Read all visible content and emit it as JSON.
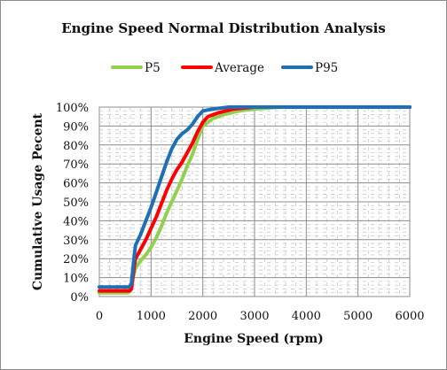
{
  "chart_data": {
    "type": "line",
    "title": "Engine Speed Normal Distribution Analysis",
    "xlabel": "Engine Speed (rpm)",
    "ylabel": "Cumulative Usage Pecent",
    "xlim": [
      0,
      6000
    ],
    "ylim": [
      0,
      100
    ],
    "x_ticks": [
      0,
      1000,
      2000,
      3000,
      4000,
      5000,
      6000
    ],
    "y_ticks": [
      0,
      10,
      20,
      30,
      40,
      50,
      60,
      70,
      80,
      90,
      100
    ],
    "y_tick_labels": [
      "0%",
      "10%",
      "20%",
      "30%",
      "40%",
      "50%",
      "60%",
      "70%",
      "80%",
      "90%",
      "100%"
    ],
    "grid": "major and minor",
    "legend_position": "top",
    "series": [
      {
        "name": "P5",
        "color": "#92d050",
        "points": [
          [
            0,
            2
          ],
          [
            550,
            2
          ],
          [
            600,
            3
          ],
          [
            650,
            10
          ],
          [
            700,
            15
          ],
          [
            800,
            19
          ],
          [
            900,
            22
          ],
          [
            1000,
            26
          ],
          [
            1100,
            31
          ],
          [
            1200,
            37
          ],
          [
            1300,
            44
          ],
          [
            1400,
            50
          ],
          [
            1500,
            56
          ],
          [
            1600,
            62
          ],
          [
            1700,
            69
          ],
          [
            1800,
            75
          ],
          [
            1900,
            83
          ],
          [
            2000,
            90
          ],
          [
            2100,
            92
          ],
          [
            2200,
            94
          ],
          [
            2400,
            96
          ],
          [
            2700,
            98
          ],
          [
            3000,
            99
          ],
          [
            3500,
            100
          ],
          [
            6000,
            100
          ]
        ]
      },
      {
        "name": "Average",
        "color": "#ff0000",
        "points": [
          [
            0,
            3
          ],
          [
            580,
            3
          ],
          [
            620,
            4
          ],
          [
            680,
            17
          ],
          [
            700,
            20
          ],
          [
            800,
            25
          ],
          [
            900,
            30
          ],
          [
            1000,
            36
          ],
          [
            1100,
            42
          ],
          [
            1200,
            49
          ],
          [
            1300,
            56
          ],
          [
            1400,
            62
          ],
          [
            1500,
            67
          ],
          [
            1600,
            71
          ],
          [
            1700,
            76
          ],
          [
            1800,
            81
          ],
          [
            1900,
            87
          ],
          [
            2000,
            92
          ],
          [
            2100,
            95
          ],
          [
            2300,
            97
          ],
          [
            2600,
            99
          ],
          [
            3000,
            100
          ],
          [
            6000,
            100
          ]
        ]
      },
      {
        "name": "P95",
        "color": "#1f6fb6",
        "points": [
          [
            0,
            5
          ],
          [
            580,
            5
          ],
          [
            620,
            7
          ],
          [
            680,
            23
          ],
          [
            700,
            27
          ],
          [
            800,
            33
          ],
          [
            900,
            40
          ],
          [
            1000,
            47
          ],
          [
            1100,
            55
          ],
          [
            1200,
            63
          ],
          [
            1300,
            71
          ],
          [
            1400,
            78
          ],
          [
            1500,
            83
          ],
          [
            1600,
            86
          ],
          [
            1700,
            88
          ],
          [
            1800,
            91
          ],
          [
            1900,
            95
          ],
          [
            2000,
            98
          ],
          [
            2200,
            99
          ],
          [
            2500,
            100
          ],
          [
            6000,
            100
          ]
        ]
      }
    ]
  }
}
